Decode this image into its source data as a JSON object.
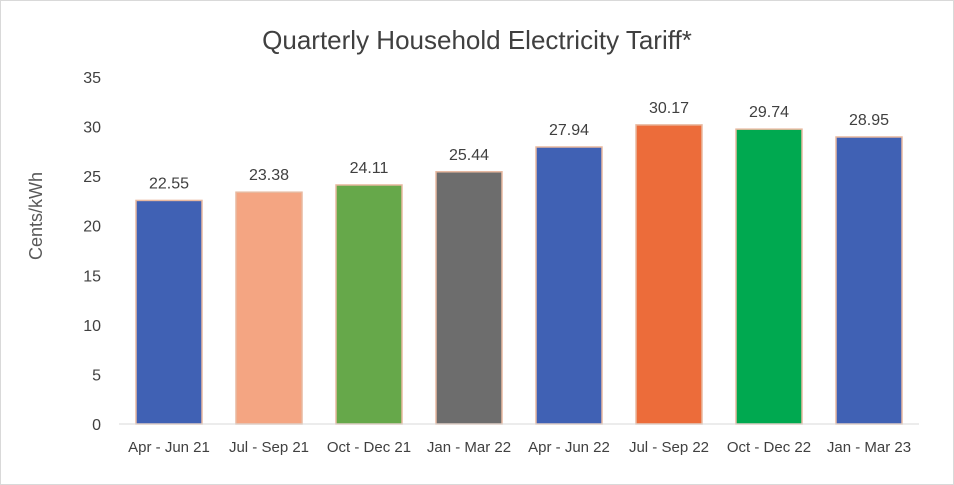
{
  "chart_data": {
    "type": "bar",
    "title": "Quarterly Household Electricity Tariff*",
    "xlabel": "",
    "ylabel": "Cents/kWh",
    "ylim": [
      0,
      35
    ],
    "yticks": [
      "0",
      "5",
      "10",
      "15",
      "20",
      "25",
      "30",
      "35"
    ],
    "grid": false,
    "categories": [
      "Apr - Jun 21",
      "Jul - Sep 21",
      "Oct - Dec 21",
      "Jan - Mar 22",
      "Apr - Jun 22",
      "Jul - Sep 22",
      "Oct - Dec 22",
      "Jan - Mar 23"
    ],
    "values": [
      22.55,
      23.38,
      24.11,
      25.44,
      27.94,
      30.17,
      29.74,
      28.95
    ],
    "data_labels": [
      "22.55",
      "23.38",
      "24.11",
      "25.44",
      "27.94",
      "30.17",
      "29.74",
      "28.95"
    ],
    "colors": [
      "#4061b4",
      "#f4a582",
      "#66a84a",
      "#6d6d6d",
      "#4061b4",
      "#ec6c3a",
      "#00a950",
      "#4061b4"
    ],
    "bar_outline": "#e8b9a0"
  }
}
